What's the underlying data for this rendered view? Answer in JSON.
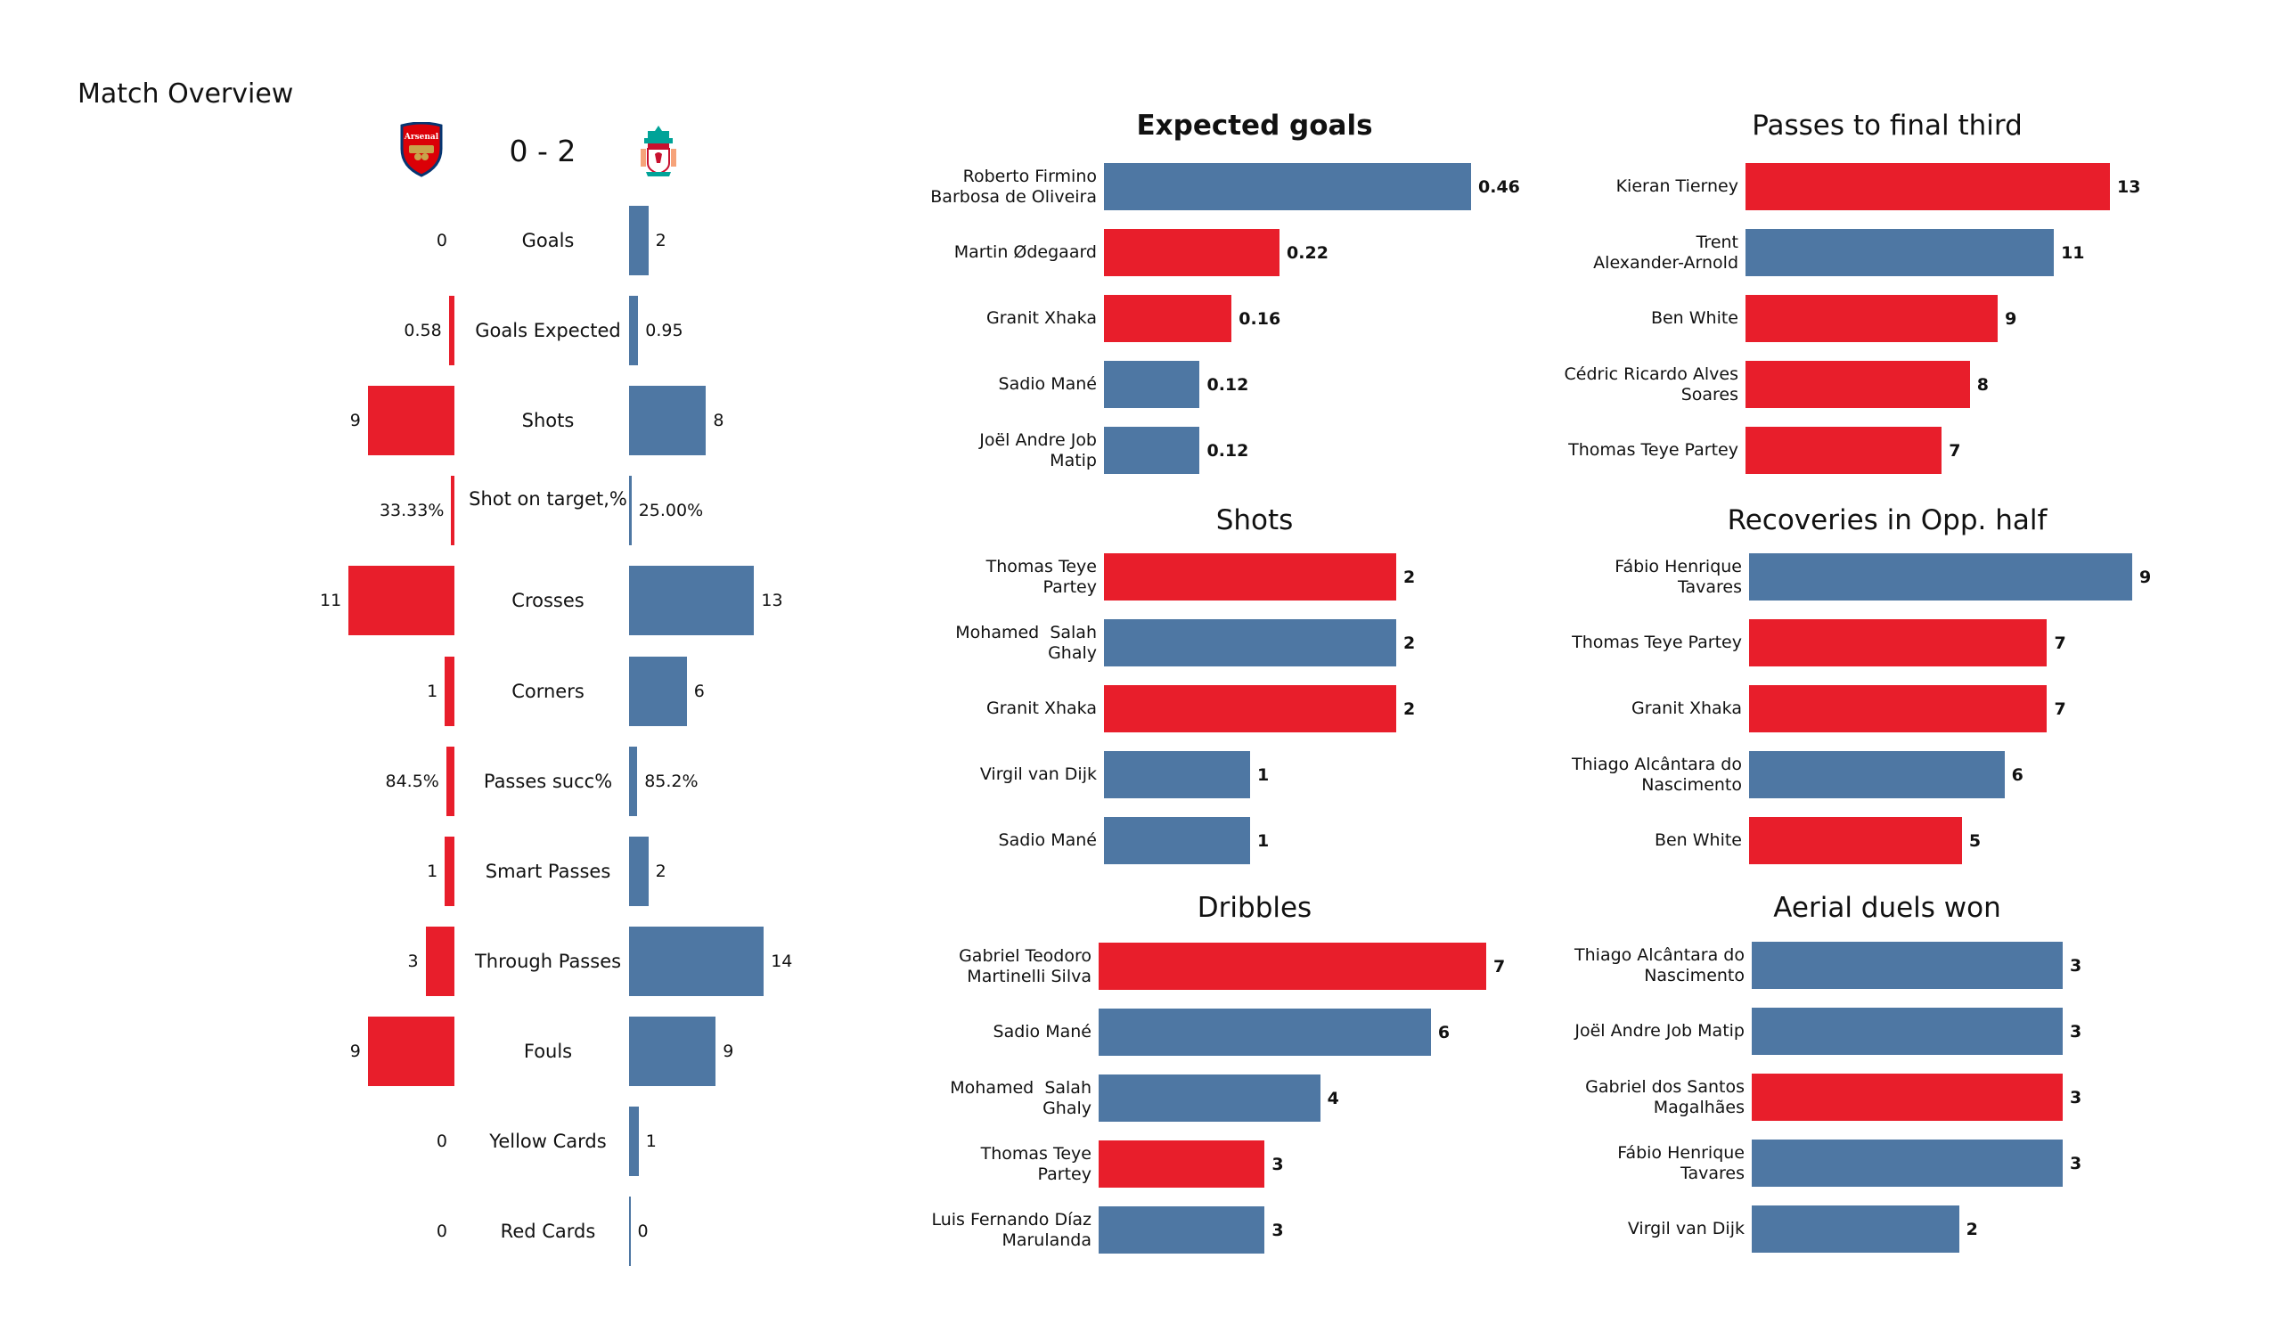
{
  "page_title": "Match Overview",
  "colors": {
    "home": "#e81e2b",
    "away": "#4e77a3",
    "text": "#111111"
  },
  "match": {
    "home_team": "Arsenal",
    "away_team": "Liverpool",
    "home_crest_icon": "arsenal-crest-icon",
    "away_crest_icon": "liverpool-crest-icon",
    "score": "0 - 2"
  },
  "chart_data": [
    {
      "type": "bar",
      "orientation": "diverging-horizontal",
      "title": "Match Overview",
      "series": [
        {
          "name": "Arsenal",
          "color": "#e81e2b"
        },
        {
          "name": "Liverpool",
          "color": "#4e77a3"
        }
      ],
      "rows": [
        {
          "label": "Goals",
          "home": 0,
          "away": 2,
          "home_text": "0",
          "away_text": "2"
        },
        {
          "label": "Goals Expected",
          "home": 0.58,
          "away": 0.95,
          "home_text": "0.58",
          "away_text": "0.95"
        },
        {
          "label": "Shots",
          "home": 9,
          "away": 8,
          "home_text": "9",
          "away_text": "8"
        },
        {
          "label": "Shot on target,%",
          "home": 0.3333,
          "away": 0.25,
          "home_text": "33.33%",
          "away_text": "25.00%"
        },
        {
          "label": "Crosses",
          "home": 11,
          "away": 13,
          "home_text": "11",
          "away_text": "13"
        },
        {
          "label": "Corners",
          "home": 1,
          "away": 6,
          "home_text": "1",
          "away_text": "6"
        },
        {
          "label": "Passes succ%",
          "home": 0.845,
          "away": 0.852,
          "home_text": "84.5%",
          "away_text": "85.2%"
        },
        {
          "label": "Smart Passes",
          "home": 1,
          "away": 2,
          "home_text": "1",
          "away_text": "2"
        },
        {
          "label": "Through Passes",
          "home": 3,
          "away": 14,
          "home_text": "3",
          "away_text": "14"
        },
        {
          "label": "Fouls",
          "home": 9,
          "away": 9,
          "home_text": "9",
          "away_text": "9"
        },
        {
          "label": "Yellow Cards",
          "home": 0,
          "away": 1,
          "home_text": "0",
          "away_text": "1"
        },
        {
          "label": "Red Cards",
          "home": 0,
          "away": 0,
          "home_text": "0",
          "away_text": "0"
        }
      ]
    },
    {
      "type": "bar",
      "orientation": "horizontal",
      "title": "Expected goals",
      "title_bold": true,
      "xlim": [
        0,
        0.46
      ],
      "bars": [
        {
          "player": "Roberto Firmino Barbosa de Oliveira",
          "lines": [
            "Roberto Firmino",
            "Barbosa de Oliveira"
          ],
          "value": 0.46,
          "text": "0.46",
          "team": "away"
        },
        {
          "player": "Martin Ødegaard",
          "lines": [
            "Martin Ødegaard"
          ],
          "value": 0.22,
          "text": "0.22",
          "team": "home"
        },
        {
          "player": "Granit Xhaka",
          "lines": [
            "Granit Xhaka"
          ],
          "value": 0.16,
          "text": "0.16",
          "team": "home"
        },
        {
          "player": "Sadio Mané",
          "lines": [
            "Sadio Mané"
          ],
          "value": 0.12,
          "text": "0.12",
          "team": "away"
        },
        {
          "player": "Joël Andre Job Matip",
          "lines": [
            "Joël Andre Job",
            "Matip"
          ],
          "value": 0.12,
          "text": "0.12",
          "team": "away"
        }
      ]
    },
    {
      "type": "bar",
      "orientation": "horizontal",
      "title": "Passes to final third",
      "title_bold": false,
      "xlim": [
        0,
        13
      ],
      "bars": [
        {
          "player": "Kieran Tierney",
          "lines": [
            "Kieran Tierney"
          ],
          "value": 13,
          "text": "13",
          "team": "home"
        },
        {
          "player": "Trent Alexander-Arnold",
          "lines": [
            "Trent",
            "Alexander-Arnold"
          ],
          "value": 11,
          "text": "11",
          "team": "away"
        },
        {
          "player": "Ben White",
          "lines": [
            "Ben White"
          ],
          "value": 9,
          "text": "9",
          "team": "home"
        },
        {
          "player": "Cédric Ricardo Alves Soares",
          "lines": [
            "Cédric Ricardo Alves",
            "Soares"
          ],
          "value": 8,
          "text": "8",
          "team": "home"
        },
        {
          "player": "Thomas Teye Partey",
          "lines": [
            "Thomas Teye Partey"
          ],
          "value": 7,
          "text": "7",
          "team": "home"
        }
      ]
    },
    {
      "type": "bar",
      "orientation": "horizontal",
      "title": "Shots",
      "title_bold": false,
      "xlim": [
        0,
        2
      ],
      "bars": [
        {
          "player": "Thomas Teye Partey",
          "lines": [
            "Thomas Teye",
            "Partey"
          ],
          "value": 2,
          "text": "2",
          "team": "home"
        },
        {
          "player": "Mohamed Salah Ghaly",
          "lines": [
            "Mohamed  Salah",
            "Ghaly"
          ],
          "value": 2,
          "text": "2",
          "team": "away"
        },
        {
          "player": "Granit Xhaka",
          "lines": [
            "Granit Xhaka"
          ],
          "value": 2,
          "text": "2",
          "team": "home"
        },
        {
          "player": "Virgil van Dijk",
          "lines": [
            "Virgil van Dijk"
          ],
          "value": 1,
          "text": "1",
          "team": "away"
        },
        {
          "player": "Sadio Mané",
          "lines": [
            "Sadio Mané"
          ],
          "value": 1,
          "text": "1",
          "team": "away"
        }
      ]
    },
    {
      "type": "bar",
      "orientation": "horizontal",
      "title": "Recoveries in Opp. half",
      "title_bold": false,
      "xlim": [
        0,
        9
      ],
      "bars": [
        {
          "player": "Fábio Henrique Tavares",
          "lines": [
            "Fábio Henrique",
            "Tavares"
          ],
          "value": 9,
          "text": "9",
          "team": "away"
        },
        {
          "player": "Thomas Teye Partey",
          "lines": [
            "Thomas Teye Partey"
          ],
          "value": 7,
          "text": "7",
          "team": "home"
        },
        {
          "player": "Granit Xhaka",
          "lines": [
            "Granit Xhaka"
          ],
          "value": 7,
          "text": "7",
          "team": "home"
        },
        {
          "player": "Thiago Alcântara do Nascimento",
          "lines": [
            "Thiago Alcântara do",
            "Nascimento"
          ],
          "value": 6,
          "text": "6",
          "team": "away"
        },
        {
          "player": "Ben White",
          "lines": [
            "Ben White"
          ],
          "value": 5,
          "text": "5",
          "team": "home"
        }
      ]
    },
    {
      "type": "bar",
      "orientation": "horizontal",
      "title": "Dribbles",
      "title_bold": false,
      "xlim": [
        0,
        7
      ],
      "bars": [
        {
          "player": "Gabriel Teodoro Martinelli Silva",
          "lines": [
            "Gabriel Teodoro",
            "Martinelli Silva"
          ],
          "value": 7,
          "text": "7",
          "team": "home"
        },
        {
          "player": "Sadio Mané",
          "lines": [
            "Sadio Mané"
          ],
          "value": 6,
          "text": "6",
          "team": "away"
        },
        {
          "player": "Mohamed Salah Ghaly",
          "lines": [
            "Mohamed  Salah",
            "Ghaly"
          ],
          "value": 4,
          "text": "4",
          "team": "away"
        },
        {
          "player": "Thomas Teye Partey",
          "lines": [
            "Thomas Teye",
            "Partey"
          ],
          "value": 3,
          "text": "3",
          "team": "home"
        },
        {
          "player": "Luis Fernando Díaz Marulanda",
          "lines": [
            "Luis Fernando Díaz",
            "Marulanda"
          ],
          "value": 3,
          "text": "3",
          "team": "away"
        }
      ]
    },
    {
      "type": "bar",
      "orientation": "horizontal",
      "title": "Aerial duels won",
      "title_bold": false,
      "xlim": [
        0,
        3
      ],
      "bars": [
        {
          "player": "Thiago Alcântara do Nascimento",
          "lines": [
            "Thiago Alcântara do",
            "Nascimento"
          ],
          "value": 3,
          "text": "3",
          "team": "away"
        },
        {
          "player": "Joël Andre Job Matip",
          "lines": [
            "Joël Andre Job Matip"
          ],
          "value": 3,
          "text": "3",
          "team": "away"
        },
        {
          "player": "Gabriel dos Santos Magalhães",
          "lines": [
            "Gabriel dos Santos",
            "Magalhães"
          ],
          "value": 3,
          "text": "3",
          "team": "home"
        },
        {
          "player": "Fábio Henrique Tavares",
          "lines": [
            "Fábio Henrique",
            "Tavares"
          ],
          "value": 3,
          "text": "3",
          "team": "away"
        },
        {
          "player": "Virgil van Dijk",
          "lines": [
            "Virgil van Dijk"
          ],
          "value": 2,
          "text": "2",
          "team": "away"
        }
      ]
    }
  ]
}
